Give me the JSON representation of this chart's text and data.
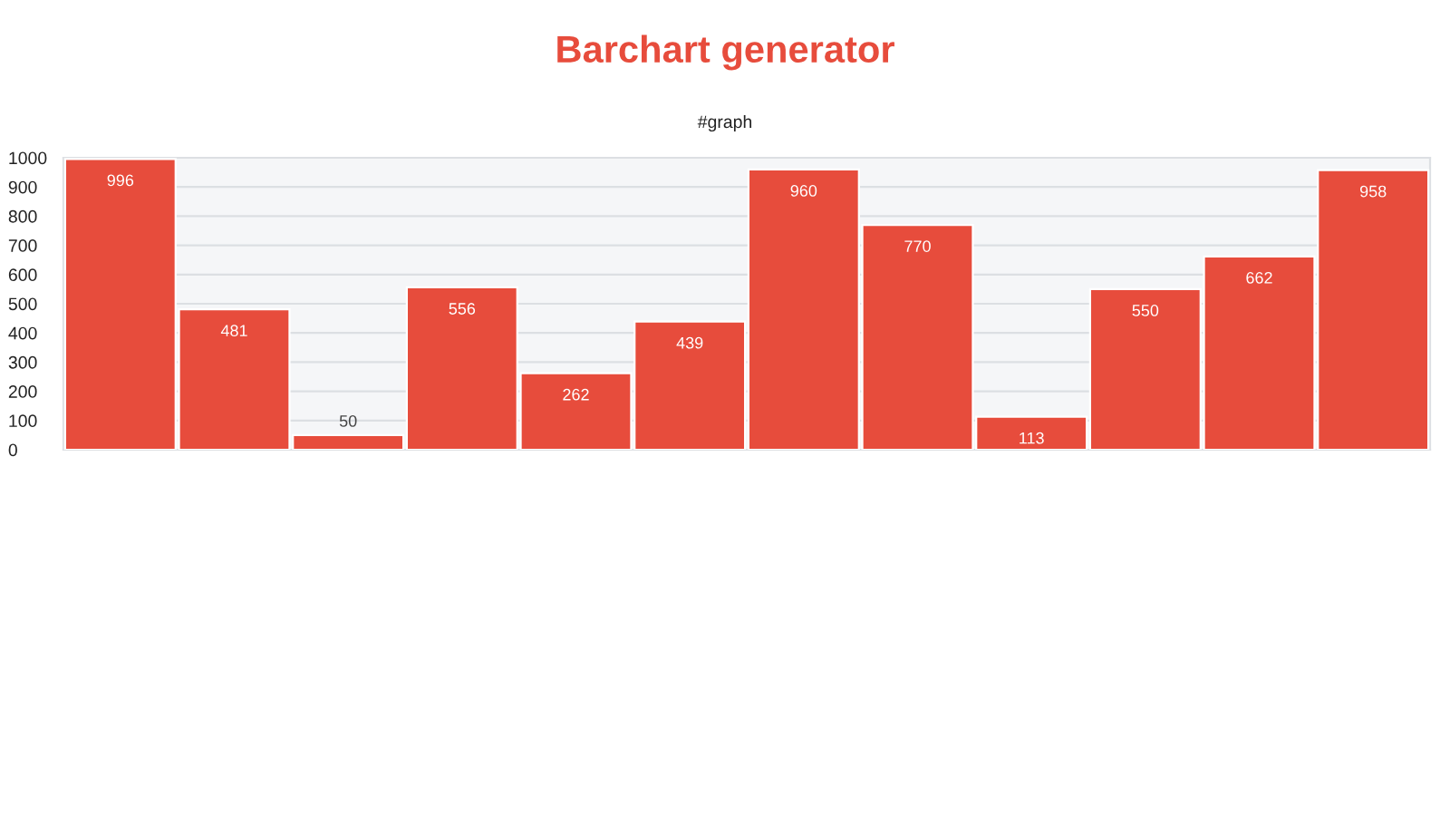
{
  "chart_data": {
    "type": "bar",
    "title": "Barchart generator",
    "subtitle": "#graph",
    "categories": [
      null,
      null,
      null,
      null,
      null,
      null,
      null,
      null,
      null,
      null,
      null,
      null
    ],
    "values": [
      996,
      481,
      50,
      556,
      262,
      439,
      960,
      770,
      113,
      550,
      662,
      958
    ],
    "color": "#e74c3c",
    "ylim": [
      0,
      1000
    ],
    "yticks": [
      0,
      100,
      200,
      300,
      400,
      500,
      600,
      700,
      800,
      900,
      1000
    ],
    "grid": "y",
    "data_labels": true
  }
}
